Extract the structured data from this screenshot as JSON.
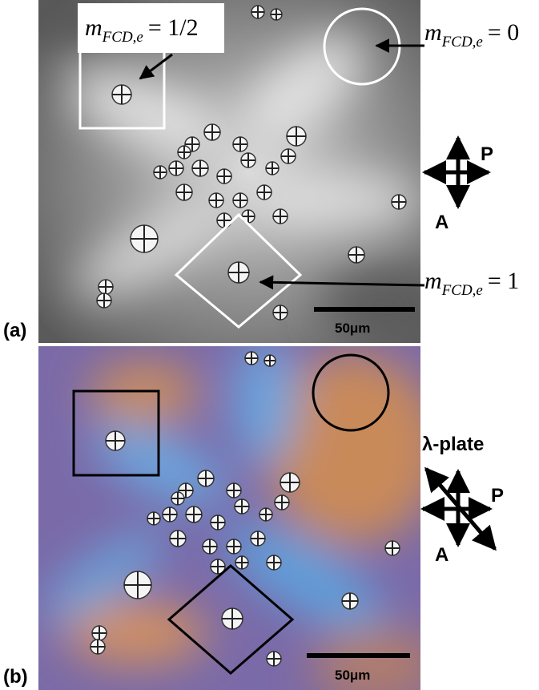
{
  "panel_a": {
    "label": "(a)",
    "annotations": [
      {
        "symbol": "m",
        "subscript": "FCD,e",
        "relation": "= 1/2"
      },
      {
        "symbol": "m",
        "subscript": "FCD,e",
        "relation": "= 0"
      },
      {
        "symbol": "m",
        "subscript": "FCD,e",
        "relation": "= 1"
      }
    ],
    "polarizer": "P",
    "analyzer": "A",
    "scale_bar": "50μm"
  },
  "panel_b": {
    "label": "(b)",
    "plate": "λ-plate",
    "polarizer": "P",
    "analyzer": "A",
    "scale_bar": "50μm"
  }
}
